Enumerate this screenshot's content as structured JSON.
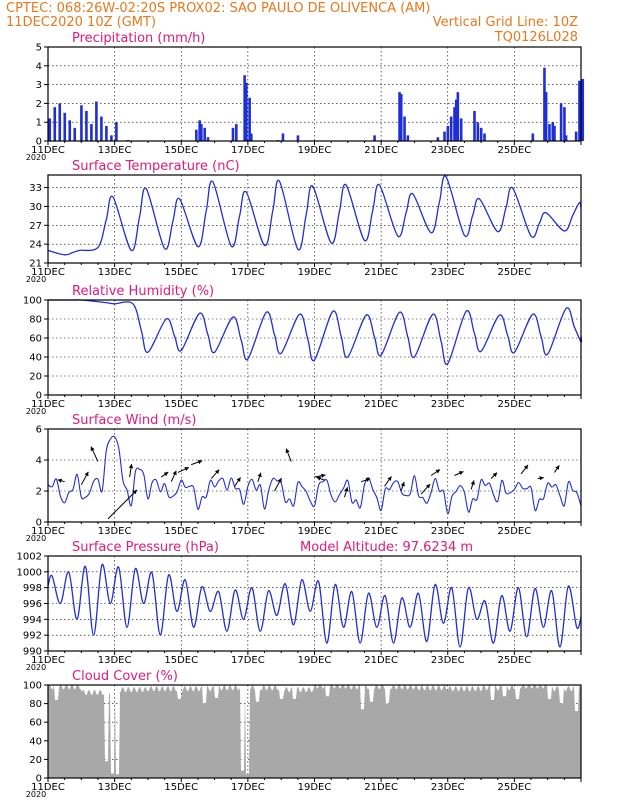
{
  "header": {
    "line1_left": "CPTEC:   068:26W-02:20S   PROX02: SAO PAULO DE OLIVENCA (AM)",
    "line2_left": "11DEC2020 10Z (GMT)",
    "line2_right": "Vertical Grid Line: 10Z",
    "line3_right": "TQ0126L028",
    "color": "#e8781e"
  },
  "colors": {
    "series": "#1f2fd6",
    "title": "#e0197d",
    "cloud": "#a8a8a8",
    "grid": "#000000"
  },
  "x_ticks": [
    "11DEC",
    "13DEC",
    "15DEC",
    "17DEC",
    "19DEC",
    "21DEC",
    "23DEC",
    "25DEC"
  ],
  "x_year": "2020",
  "chart_data": [
    {
      "type": "bar",
      "title": "Precipitation (mm/h)",
      "ylim": [
        0,
        5
      ],
      "yticks": [
        0,
        1,
        2,
        3,
        4,
        5
      ],
      "bars": [
        [
          0.05,
          1.2
        ],
        [
          0.2,
          1.8
        ],
        [
          0.35,
          2.0
        ],
        [
          0.5,
          1.5
        ],
        [
          0.65,
          1.1
        ],
        [
          0.8,
          0.7
        ],
        [
          1.0,
          1.9
        ],
        [
          1.15,
          1.6
        ],
        [
          1.3,
          0.9
        ],
        [
          1.45,
          2.1
        ],
        [
          1.6,
          1.3
        ],
        [
          1.75,
          0.8
        ],
        [
          1.9,
          0.3
        ],
        [
          2.05,
          1.0
        ],
        [
          2.4,
          0.05
        ],
        [
          4.45,
          0.6
        ],
        [
          4.55,
          1.1
        ],
        [
          4.6,
          0.9
        ],
        [
          4.7,
          0.7
        ],
        [
          4.8,
          0.2
        ],
        [
          5.55,
          0.7
        ],
        [
          5.65,
          0.9
        ],
        [
          5.9,
          3.5
        ],
        [
          5.95,
          3.1
        ],
        [
          6.05,
          2.3
        ],
        [
          6.1,
          0.4
        ],
        [
          6.9,
          0.05
        ],
        [
          7.05,
          0.4
        ],
        [
          7.5,
          0.3
        ],
        [
          9.8,
          0.3
        ],
        [
          10.55,
          2.6
        ],
        [
          10.6,
          2.5
        ],
        [
          10.7,
          1.3
        ],
        [
          10.8,
          0.3
        ],
        [
          11.7,
          0.2
        ],
        [
          11.9,
          0.5
        ],
        [
          12.0,
          0.8
        ],
        [
          12.1,
          1.3
        ],
        [
          12.2,
          1.8
        ],
        [
          12.25,
          2.2
        ],
        [
          12.3,
          2.6
        ],
        [
          12.4,
          1.2
        ],
        [
          12.8,
          1.6
        ],
        [
          12.9,
          1.0
        ],
        [
          13.0,
          0.7
        ],
        [
          13.1,
          0.4
        ],
        [
          14.55,
          0.4
        ],
        [
          14.9,
          3.9
        ],
        [
          14.95,
          2.6
        ],
        [
          15.05,
          0.9
        ],
        [
          15.15,
          1.0
        ],
        [
          15.2,
          0.8
        ],
        [
          15.4,
          2.0
        ],
        [
          15.5,
          1.8
        ],
        [
          15.55,
          0.3
        ],
        [
          15.85,
          0.5
        ],
        [
          15.95,
          3.2
        ],
        [
          16.05,
          3.3
        ]
      ]
    },
    {
      "type": "line",
      "title": "Surface Temperature (nC)",
      "ylim": [
        21,
        35
      ],
      "yticks": [
        21,
        24,
        27,
        30,
        33
      ],
      "daily_min": [
        22.3,
        23.5,
        23.0,
        23.3,
        23.6,
        23.7,
        23.8,
        23.2,
        24.2,
        24.6,
        25.3,
        25.8,
        25.4,
        26.0,
        25.3,
        26.1
      ],
      "daily_max": [
        23.0,
        31.5,
        32.8,
        31.2,
        33.9,
        32.3,
        34.0,
        33.2,
        33.4,
        33.4,
        32.0,
        34.7,
        31.2,
        32.9,
        29.0,
        30.6
      ]
    },
    {
      "type": "line",
      "title": "Relative Humidity (%)",
      "ylim": [
        0,
        100
      ],
      "yticks": [
        0,
        20,
        40,
        60,
        80,
        100
      ],
      "daily_min": [
        100,
        96,
        45,
        47,
        45,
        38,
        44,
        37,
        40,
        42,
        40,
        33,
        46,
        45,
        43,
        56
      ],
      "daily_max": [
        100,
        98,
        96,
        80,
        86,
        82,
        87,
        85,
        88,
        84,
        87,
        85,
        88,
        84,
        85,
        91
      ]
    },
    {
      "type": "line",
      "title": "Surface Wind (m/s)",
      "ylim": [
        0,
        6
      ],
      "yticks": [
        0,
        2,
        4,
        6
      ],
      "speed_base": [
        2.0,
        1.9,
        2.0,
        1.5,
        1.8,
        1.9,
        1.7,
        1.8,
        1.9,
        1.7,
        1.8,
        1.9,
        1.6,
        1.7,
        1.7,
        1.7
      ],
      "gust_peaks": [
        [
          1.4,
          2.8
        ],
        [
          1.95,
          5.8
        ],
        [
          2.7,
          3.7
        ],
        [
          3.2,
          3.0
        ],
        [
          4.0,
          2.7
        ],
        [
          5.2,
          3.1
        ],
        [
          6.1,
          2.9
        ],
        [
          6.8,
          3.1
        ],
        [
          8.3,
          2.9
        ],
        [
          9.6,
          3.0
        ],
        [
          10.5,
          2.6
        ],
        [
          11.6,
          2.5
        ],
        [
          12.4,
          2.5
        ],
        [
          13.2,
          2.8
        ],
        [
          14.1,
          2.7
        ],
        [
          15.2,
          2.7
        ]
      ],
      "arrows": [
        [
          0.5,
          2.6,
          -0.7,
          0.2
        ],
        [
          1.0,
          2.4,
          0.7,
          1.3
        ],
        [
          1.8,
          0.2,
          2.9,
          2.9
        ],
        [
          1.5,
          3.9,
          -0.7,
          1.5
        ],
        [
          2.45,
          2.9,
          0.2,
          1.3
        ],
        [
          3.4,
          2.9,
          0.7,
          0.5
        ],
        [
          3.7,
          2.6,
          0.5,
          1.1
        ],
        [
          3.9,
          3.2,
          1.1,
          0.5
        ],
        [
          4.3,
          3.7,
          1.1,
          0.4
        ],
        [
          4.9,
          2.8,
          0.8,
          0.9
        ],
        [
          5.6,
          2.3,
          0.6,
          0.9
        ],
        [
          6.3,
          2.6,
          0.3,
          0.9
        ],
        [
          6.8,
          2.0,
          0.7,
          1.3
        ],
        [
          7.3,
          3.9,
          -0.5,
          1.3
        ],
        [
          8.0,
          2.9,
          1.1,
          0.2
        ],
        [
          8.3,
          2.7,
          -0.8,
          0.3
        ],
        [
          8.9,
          1.6,
          0.3,
          1.0
        ],
        [
          9.4,
          2.6,
          0.9,
          0.3
        ],
        [
          10.1,
          2.3,
          0.7,
          1.0
        ],
        [
          10.6,
          2.0,
          0.3,
          0.9
        ],
        [
          11.2,
          1.8,
          0.9,
          1.0
        ],
        [
          11.5,
          3.0,
          0.9,
          0.6
        ],
        [
          12.2,
          3.0,
          0.9,
          0.4
        ],
        [
          12.7,
          2.1,
          0.3,
          0.9
        ],
        [
          13.3,
          2.8,
          0.6,
          0.6
        ],
        [
          14.2,
          3.1,
          0.7,
          0.9
        ],
        [
          14.7,
          2.8,
          0.6,
          0.1
        ],
        [
          15.2,
          3.2,
          0.5,
          0.7
        ]
      ]
    },
    {
      "type": "line",
      "title": "Surface Pressure (hPa)",
      "ylim": [
        990,
        1002
      ],
      "yticks": [
        990,
        992,
        994,
        996,
        998,
        1000,
        1002
      ],
      "annotation": "Model Altitude: 97.6234 m",
      "semi_diurnal_max": [
        999.5,
        1000.0,
        1000.7,
        1000.9,
        1000.6,
        1000.4,
        999.9,
        999.6,
        999.0,
        998.1,
        997.5,
        997.7,
        998.0,
        997.6,
        998.5,
        999.0,
        998.8,
        998.4,
        997.5,
        997.3,
        997.0,
        996.7,
        997.3,
        998.4,
        998.0,
        998.0,
        996.3,
        997.0,
        998.0,
        997.9,
        997.6,
        998.2
      ],
      "semi_diurnal_min": [
        996.0,
        994.0,
        992.0,
        996.0,
        993.0,
        996.0,
        992.0,
        995.0,
        993.0,
        995.0,
        992.5,
        994.0,
        992.5,
        994.5,
        993.3,
        995.0,
        991.0,
        993.0,
        991.0,
        993.0,
        991.0,
        993.0,
        991.2,
        993.5,
        990.5,
        994.0,
        991.0,
        992.5,
        991.8,
        993.0,
        990.5,
        993.0
      ]
    },
    {
      "type": "area",
      "title": "Cloud Cover (%)",
      "ylim": [
        0,
        100
      ],
      "yticks": [
        0,
        20,
        40,
        60,
        80,
        100
      ],
      "base_level": [
        98,
        92,
        95,
        96,
        96,
        97,
        97,
        95,
        99,
        98,
        98,
        97,
        96,
        97,
        99,
        96
      ],
      "dips": [
        [
          0.25,
          84
        ],
        [
          1.75,
          18
        ],
        [
          1.95,
          5
        ],
        [
          2.1,
          4
        ],
        [
          3.95,
          85
        ],
        [
          4.7,
          80
        ],
        [
          5.05,
          86
        ],
        [
          5.85,
          8
        ],
        [
          6.0,
          4
        ],
        [
          6.3,
          82
        ],
        [
          7.0,
          85
        ],
        [
          7.4,
          85
        ],
        [
          8.4,
          88
        ],
        [
          9.45,
          74
        ],
        [
          9.7,
          82
        ],
        [
          10.2,
          80
        ],
        [
          13.35,
          84
        ],
        [
          13.7,
          88
        ],
        [
          14.1,
          85
        ],
        [
          15.05,
          85
        ],
        [
          15.4,
          80
        ],
        [
          15.85,
          72
        ]
      ]
    }
  ]
}
